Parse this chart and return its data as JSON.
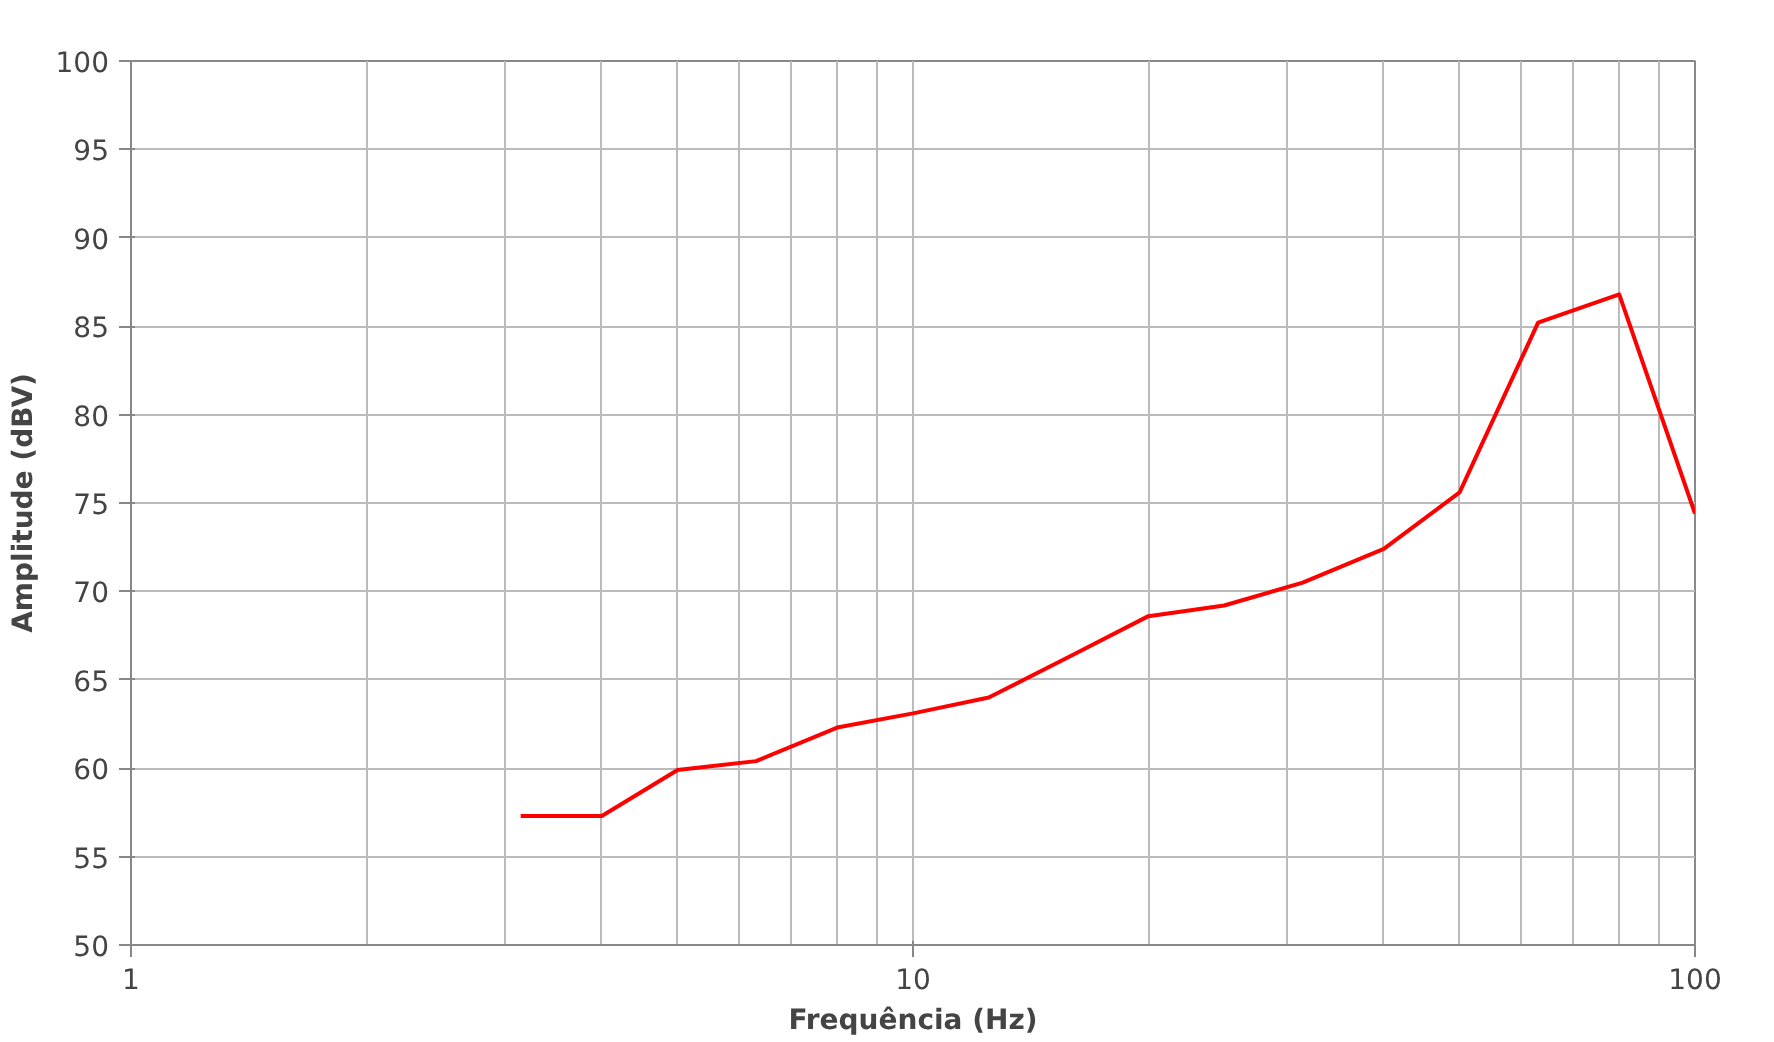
{
  "chart_data": {
    "type": "line",
    "xlabel": "Frequência (Hz)",
    "ylabel": "Amplitude (dBV)",
    "x": [
      3.15,
      4,
      5,
      6.3,
      8,
      10,
      12.5,
      16,
      20,
      25,
      31.5,
      40,
      50,
      63,
      80,
      100
    ],
    "series": [
      {
        "color": "#ff0000",
        "values": [
          57.3,
          57.3,
          59.9,
          60.4,
          62.3,
          63.1,
          64.0,
          66.4,
          68.6,
          69.2,
          70.5,
          72.4,
          75.6,
          85.2,
          86.8,
          74.4
        ]
      }
    ],
    "log": "x",
    "xlim": [
      1,
      100
    ],
    "xticks": [
      1,
      10,
      100
    ],
    "ylim": [
      50,
      100
    ],
    "yticks": [
      50,
      55,
      60,
      65,
      70,
      75,
      80,
      85,
      90,
      95,
      100
    ],
    "grid": true,
    "marker": "none",
    "line_style": "solid"
  }
}
